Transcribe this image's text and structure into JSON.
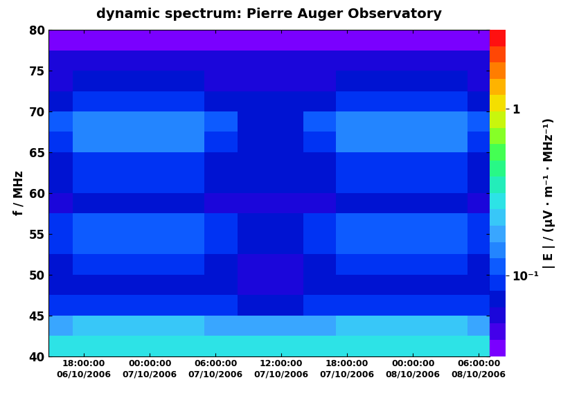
{
  "chart_data": {
    "type": "heatmap",
    "title": "dynamic spectrum: Pierre Auger Observatory",
    "ylabel": "f / MHz",
    "x": [
      "2006-10-06 14:45",
      "2006-10-06 17:00",
      "2006-10-06 20:00",
      "2006-10-06 23:00",
      "2006-10-07 02:00",
      "2006-10-07 05:00",
      "2006-10-07 08:00",
      "2006-10-07 11:00",
      "2006-10-07 14:00",
      "2006-10-07 17:00",
      "2006-10-07 20:00",
      "2006-10-07 23:00",
      "2006-10-08 02:00",
      "2006-10-08 05:00",
      "2006-10-08 07:00"
    ],
    "y": [
      40,
      42.5,
      45,
      47.5,
      50,
      52.5,
      55,
      57.5,
      60,
      62.5,
      65,
      67.5,
      70,
      72.5,
      75,
      77.5,
      80
    ],
    "cells": [
      [
        0.3,
        0.3,
        0.3,
        0.3,
        0.3,
        0.3,
        0.3,
        0.3,
        0.3,
        0.3,
        0.3,
        0.3,
        0.3,
        0.3
      ],
      [
        0.18,
        0.2,
        0.2,
        0.2,
        0.2,
        0.18,
        0.17,
        0.17,
        0.18,
        0.2,
        0.2,
        0.2,
        0.2,
        0.18
      ],
      [
        0.085,
        0.1,
        0.1,
        0.1,
        0.1,
        0.085,
        0.075,
        0.075,
        0.085,
        0.1,
        0.1,
        0.1,
        0.1,
        0.085
      ],
      [
        0.068,
        0.08,
        0.08,
        0.08,
        0.08,
        0.068,
        0.058,
        0.058,
        0.068,
        0.08,
        0.08,
        0.08,
        0.08,
        0.068
      ],
      [
        0.072,
        0.09,
        0.09,
        0.09,
        0.09,
        0.072,
        0.058,
        0.058,
        0.072,
        0.09,
        0.09,
        0.09,
        0.09,
        0.072
      ],
      [
        0.095,
        0.125,
        0.125,
        0.125,
        0.125,
        0.095,
        0.075,
        0.075,
        0.095,
        0.125,
        0.125,
        0.125,
        0.125,
        0.095
      ],
      [
        0.095,
        0.12,
        0.12,
        0.12,
        0.12,
        0.095,
        0.075,
        0.075,
        0.095,
        0.12,
        0.12,
        0.12,
        0.12,
        0.095
      ],
      [
        0.064,
        0.07,
        0.07,
        0.07,
        0.07,
        0.064,
        0.058,
        0.058,
        0.064,
        0.07,
        0.07,
        0.07,
        0.07,
        0.064
      ],
      [
        0.075,
        0.09,
        0.09,
        0.09,
        0.09,
        0.075,
        0.065,
        0.065,
        0.075,
        0.09,
        0.09,
        0.09,
        0.09,
        0.075
      ],
      [
        0.08,
        0.1,
        0.1,
        0.1,
        0.1,
        0.08,
        0.066,
        0.066,
        0.08,
        0.1,
        0.1,
        0.1,
        0.1,
        0.08
      ],
      [
        0.1,
        0.13,
        0.13,
        0.13,
        0.13,
        0.1,
        0.075,
        0.075,
        0.1,
        0.13,
        0.13,
        0.13,
        0.13,
        0.1
      ],
      [
        0.105,
        0.14,
        0.14,
        0.14,
        0.14,
        0.105,
        0.078,
        0.078,
        0.105,
        0.14,
        0.14,
        0.14,
        0.14,
        0.105
      ],
      [
        0.08,
        0.1,
        0.1,
        0.1,
        0.1,
        0.08,
        0.066,
        0.066,
        0.08,
        0.1,
        0.1,
        0.1,
        0.1,
        0.08
      ],
      [
        0.064,
        0.07,
        0.07,
        0.07,
        0.07,
        0.064,
        0.058,
        0.058,
        0.064,
        0.07,
        0.07,
        0.07,
        0.07,
        0.064
      ],
      [
        0.057,
        0.06,
        0.06,
        0.06,
        0.06,
        0.057,
        0.055,
        0.055,
        0.057,
        0.06,
        0.06,
        0.06,
        0.06,
        0.057
      ],
      [
        0.036,
        0.036,
        0.036,
        0.036,
        0.036,
        0.036,
        0.036,
        0.036,
        0.036,
        0.036,
        0.036,
        0.036,
        0.036,
        0.036
      ]
    ],
    "xlim": [
      "2006-10-06 14:45",
      "2006-10-08 07:00"
    ],
    "xticks": [
      {
        "value": "2006-10-06 18:00",
        "label": "18:00:00\n06/10/2006"
      },
      {
        "value": "2006-10-07 00:00",
        "label": "00:00:00\n07/10/2006"
      },
      {
        "value": "2006-10-07 06:00",
        "label": "06:00:00\n07/10/2006"
      },
      {
        "value": "2006-10-07 12:00",
        "label": "12:00:00\n07/10/2006"
      },
      {
        "value": "2006-10-07 18:00",
        "label": "18:00:00\n07/10/2006"
      },
      {
        "value": "2006-10-08 00:00",
        "label": "00:00:00\n08/10/2006"
      },
      {
        "value": "2006-10-08 06:00",
        "label": "06:00:00\n08/10/2006"
      }
    ],
    "ylim": [
      40,
      80
    ],
    "yticks": [
      40,
      45,
      50,
      55,
      60,
      65,
      70,
      75,
      80
    ],
    "colorbar_label": "| E | / (µV · m⁻¹ · MHz⁻¹)",
    "colorbar_lim": [
      0.033,
      2.95
    ],
    "colorbar_ticks": [
      {
        "value": 0.1,
        "label": "10⁻¹"
      },
      1
    ],
    "log": true
  }
}
